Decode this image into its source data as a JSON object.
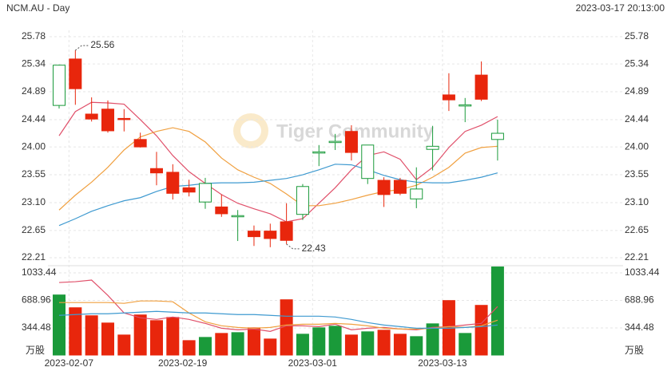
{
  "chart_data": [
    {
      "type": "candlestick",
      "title": "NCM.AU - Day",
      "subtitle": "2023-03-17 20:13:00",
      "watermark": "Tiger Community",
      "categories": [
        null,
        "2023-02-07",
        null,
        null,
        null,
        null,
        null,
        null,
        "2023-02-19",
        null,
        null,
        null,
        null,
        null,
        null,
        null,
        "2023-03-01",
        null,
        null,
        null,
        null,
        null,
        null,
        null,
        "2023-03-13",
        null,
        null,
        null
      ],
      "open": [
        24.67,
        25.42,
        24.53,
        24.61,
        24.46,
        24.12,
        23.65,
        23.59,
        23.34,
        23.11,
        23.03,
        22.88,
        22.64,
        22.64,
        22.79,
        22.91,
        23.9,
        24.07,
        24.25,
        23.49,
        23.46,
        23.46,
        23.16,
        23.96,
        24.84,
        24.66,
        25.16,
        24.12
      ],
      "high": [
        25.33,
        25.56,
        24.8,
        24.75,
        24.61,
        24.23,
        23.92,
        23.72,
        23.47,
        23.5,
        23.23,
        22.98,
        22.73,
        22.76,
        23.09,
        23.4,
        24.03,
        24.21,
        24.35,
        24.03,
        23.51,
        23.5,
        23.67,
        24.34,
        25.19,
        24.79,
        25.38,
        24.44
      ],
      "low": [
        24.62,
        24.68,
        24.41,
        24.23,
        24.25,
        23.99,
        23.38,
        23.15,
        23.2,
        23.0,
        22.87,
        22.48,
        22.4,
        22.38,
        22.43,
        22.82,
        23.69,
        23.95,
        23.78,
        23.4,
        23.03,
        23.22,
        23.01,
        23.62,
        24.58,
        24.4,
        24.74,
        23.78
      ],
      "close": [
        25.32,
        24.94,
        24.45,
        24.26,
        24.45,
        24.0,
        23.58,
        23.25,
        23.27,
        23.41,
        22.92,
        22.89,
        22.55,
        22.52,
        22.49,
        23.36,
        23.92,
        24.09,
        23.91,
        24.03,
        23.23,
        23.25,
        23.32,
        24.01,
        24.76,
        24.68,
        24.77,
        24.22
      ],
      "up_color": "#1a9a3a",
      "down_color": "#e8260c",
      "high_label_index": 1,
      "low_label_index": 14,
      "series": [
        {
          "color": "#e0506a",
          "values": [
            24.18,
            24.57,
            24.72,
            24.71,
            24.69,
            24.44,
            24.18,
            23.86,
            23.6,
            23.41,
            23.23,
            23.09,
            23.0,
            22.92,
            22.79,
            22.84,
            23.09,
            23.34,
            23.63,
            23.86,
            23.92,
            23.8,
            23.47,
            23.67,
            23.99,
            24.25,
            24.35,
            24.49
          ]
        },
        {
          "color": "#f0a040",
          "values": [
            22.98,
            23.22,
            23.43,
            23.67,
            23.95,
            24.16,
            24.25,
            24.31,
            24.25,
            24.08,
            23.82,
            23.63,
            23.51,
            23.41,
            23.24,
            23.05,
            23.05,
            23.09,
            23.15,
            23.22,
            23.28,
            23.31,
            23.38,
            23.51,
            23.67,
            23.9,
            23.99,
            24.01
          ]
        },
        {
          "color": "#3f9ad0",
          "values": [
            22.73,
            22.84,
            22.96,
            23.05,
            23.13,
            23.18,
            23.28,
            23.36,
            23.38,
            23.41,
            23.42,
            23.42,
            23.43,
            23.46,
            23.49,
            23.55,
            23.63,
            23.72,
            23.71,
            23.63,
            23.54,
            23.47,
            23.43,
            23.42,
            23.42,
            23.46,
            23.51,
            23.58
          ]
        }
      ],
      "ylim": [
        22.21,
        25.78
      ],
      "yticks": [
        25.78,
        25.34,
        24.89,
        24.44,
        {
          "value": 24,
          "label": "24.00"
        },
        23.55,
        {
          "value": 23.1,
          "label": "23.10"
        },
        22.65,
        22.21
      ],
      "grid": true
    },
    {
      "type": "bar",
      "unit_label": "万股",
      "values": [
        762,
        602,
        502,
        411,
        261,
        512,
        441,
        481,
        191,
        231,
        281,
        291,
        351,
        211,
        702,
        271,
        351,
        371,
        261,
        301,
        321,
        271,
        241,
        401,
        692,
        281,
        632,
        1113
      ],
      "series": [
        {
          "color": "#e0506a",
          "values": [
            913,
            923,
            943,
            752,
            532,
            471,
            451,
            481,
            451,
            401,
            341,
            321,
            331,
            301,
            371,
            371,
            361,
            391,
            321,
            341,
            351,
            331,
            321,
            351,
            361,
            381,
            401,
            612
          ]
        },
        {
          "color": "#f0a040",
          "values": [
            662,
            662,
            662,
            662,
            652,
            682,
            682,
            672,
            532,
            421,
            371,
            351,
            341,
            351,
            381,
            391,
            391,
            401,
            391,
            371,
            341,
            331,
            331,
            341,
            361,
            351,
            371,
            441
          ]
        },
        {
          "color": "#3f9ad0",
          "values": [
            502,
            512,
            522,
            522,
            532,
            542,
            552,
            542,
            532,
            532,
            522,
            512,
            512,
            502,
            491,
            491,
            491,
            481,
            451,
            411,
            381,
            361,
            341,
            341,
            341,
            351,
            361,
            381
          ]
        }
      ],
      "ylim": [
        0,
        1033.44
      ],
      "yticks": [
        1033.44,
        688.96,
        344.48
      ],
      "grid": true
    }
  ]
}
